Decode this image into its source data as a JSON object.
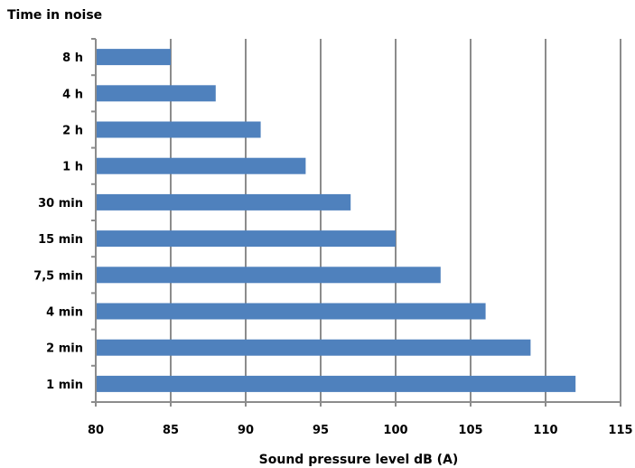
{
  "chart_data": {
    "type": "bar",
    "orientation": "horizontal",
    "title": "Time in noise",
    "xlabel": "Sound pressure level dB (A)",
    "ylabel": "",
    "categories": [
      "8 h",
      "4 h",
      "2 h",
      "1 h",
      "30 min",
      "15 min",
      "7,5 min",
      "4 min",
      "2 min",
      "1 min"
    ],
    "values": [
      85,
      88,
      91,
      94,
      97,
      100,
      103,
      106,
      109,
      112
    ],
    "xlim": [
      80,
      115
    ],
    "xticks": [
      80,
      85,
      90,
      95,
      100,
      105,
      110,
      115
    ],
    "xtick_labels": [
      "80",
      "85",
      "90",
      "95",
      "100",
      "105",
      "110",
      "115"
    ],
    "grid": "vertical",
    "legend": "none",
    "bar_color": "#4f81bd",
    "grid_color": "#8c8c8c"
  }
}
